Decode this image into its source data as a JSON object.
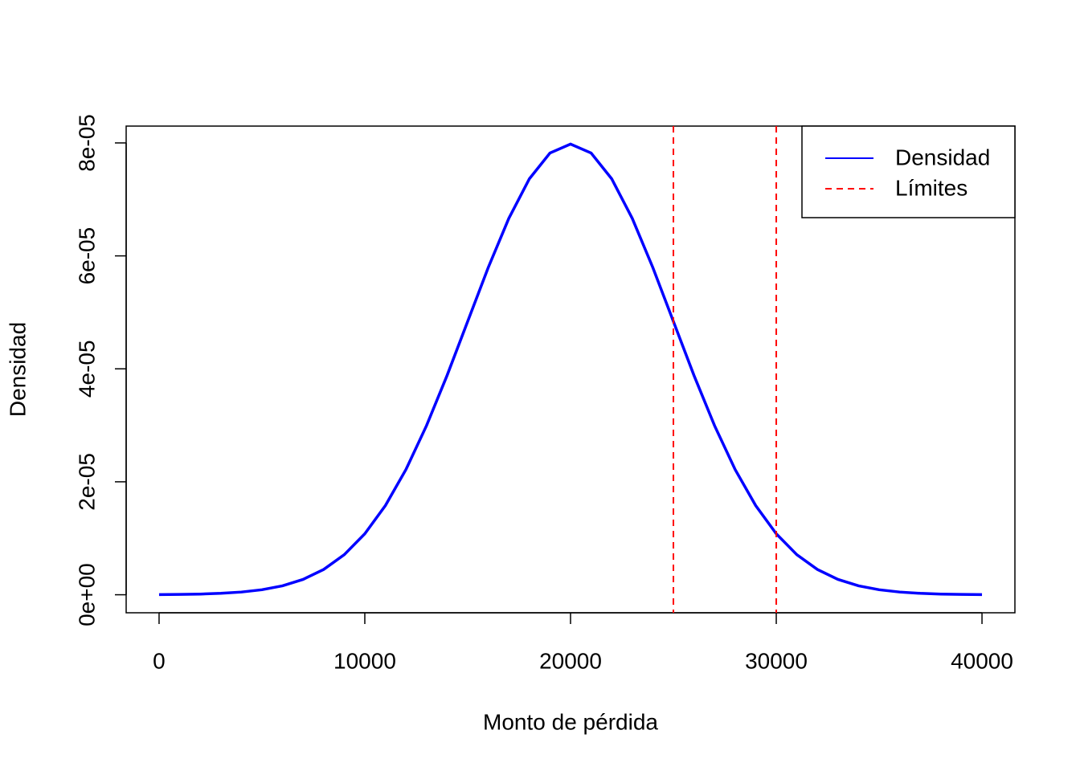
{
  "chart_data": {
    "type": "line",
    "x_label": "Monto de pérdida",
    "y_label": "Densidad",
    "x": [
      0,
      1000,
      2000,
      3000,
      4000,
      5000,
      6000,
      7000,
      8000,
      9000,
      10000,
      11000,
      12000,
      13000,
      14000,
      15000,
      16000,
      17000,
      18000,
      19000,
      20000,
      21000,
      22000,
      23000,
      24000,
      25000,
      26000,
      27000,
      28000,
      29000,
      30000,
      31000,
      32000,
      33000,
      34000,
      35000,
      36000,
      37000,
      38000,
      39000,
      40000
    ],
    "series": [
      {
        "name": "Densidad",
        "color": "#0000ff",
        "values": [
          3e-08,
          6e-08,
          1.2e-07,
          2.5e-07,
          4.8e-07,
          8.9e-07,
          1.58e-06,
          2.72e-06,
          4.48e-06,
          7.09e-06,
          1.08e-05,
          1.579e-05,
          2.218e-05,
          2.995e-05,
          3.884e-05,
          4.839e-05,
          5.794e-05,
          6.664e-05,
          7.365e-05,
          7.821e-05,
          7.979e-05,
          7.821e-05,
          7.365e-05,
          6.664e-05,
          5.794e-05,
          4.839e-05,
          3.884e-05,
          2.995e-05,
          2.218e-05,
          1.579e-05,
          1.08e-05,
          7.09e-06,
          4.48e-06,
          2.72e-06,
          1.58e-06,
          8.9e-07,
          4.8e-07,
          2.5e-07,
          1.2e-07,
          6e-08,
          3e-08
        ]
      }
    ],
    "vlines": {
      "name": "Límites",
      "color": "#ff0000",
      "values": [
        25000,
        30000
      ]
    },
    "xlim": [
      -1600,
      41600
    ],
    "xticks": [
      0,
      10000,
      20000,
      30000,
      40000
    ],
    "ylim": [
      -3.19e-06,
      8.298e-05
    ],
    "yticks": [
      {
        "value": 0,
        "label": "0e+00"
      },
      {
        "value": 2e-05,
        "label": "2e-05"
      },
      {
        "value": 4e-05,
        "label": "4e-05"
      },
      {
        "value": 6e-05,
        "label": "6e-05"
      },
      {
        "value": 8e-05,
        "label": "8e-05"
      }
    ],
    "legend": "top-right"
  }
}
